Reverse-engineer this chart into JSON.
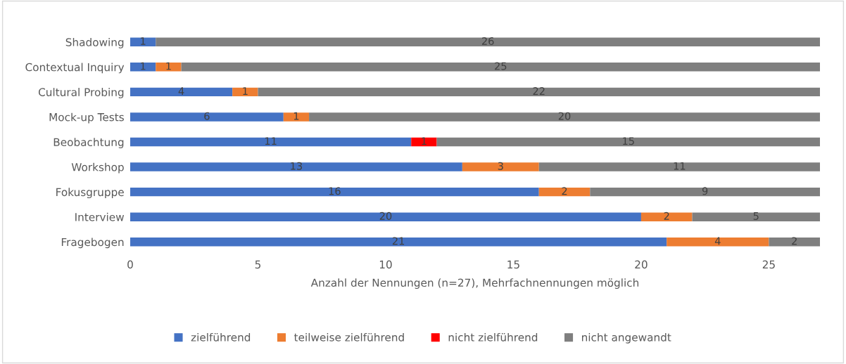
{
  "chart_data": {
    "type": "bar",
    "orientation": "horizontal",
    "stacked": true,
    "xlabel": "Anzahl der Nennungen (n=27), Mehrfachnennungen möglich",
    "categories": [
      "Shadowing",
      "Contextual Inquiry",
      "Cultural Probing",
      "Mock-up Tests",
      "Beobachtung",
      "Workshop",
      "Fokusgruppe",
      "Interview",
      "Fragebogen"
    ],
    "series": [
      {
        "name": "zielführend",
        "color": "#4472c4",
        "values": [
          1,
          1,
          4,
          6,
          11,
          13,
          16,
          20,
          21
        ]
      },
      {
        "name": "teilweise zielführend",
        "color": "#ed7d31",
        "values": [
          null,
          1,
          1,
          1,
          null,
          3,
          2,
          2,
          4
        ]
      },
      {
        "name": "nicht zielführend",
        "color": "#ff0000",
        "values": [
          null,
          null,
          null,
          null,
          1,
          null,
          null,
          null,
          null
        ]
      },
      {
        "name": "nicht angewandt",
        "color": "#7f7f7f",
        "values": [
          26,
          25,
          22,
          20,
          15,
          11,
          9,
          5,
          2
        ]
      }
    ],
    "xlim": [
      0,
      27
    ],
    "xticks": [
      0,
      5,
      10,
      15,
      20,
      25
    ],
    "data_labels": true,
    "legend": "bottom",
    "grid": false
  }
}
